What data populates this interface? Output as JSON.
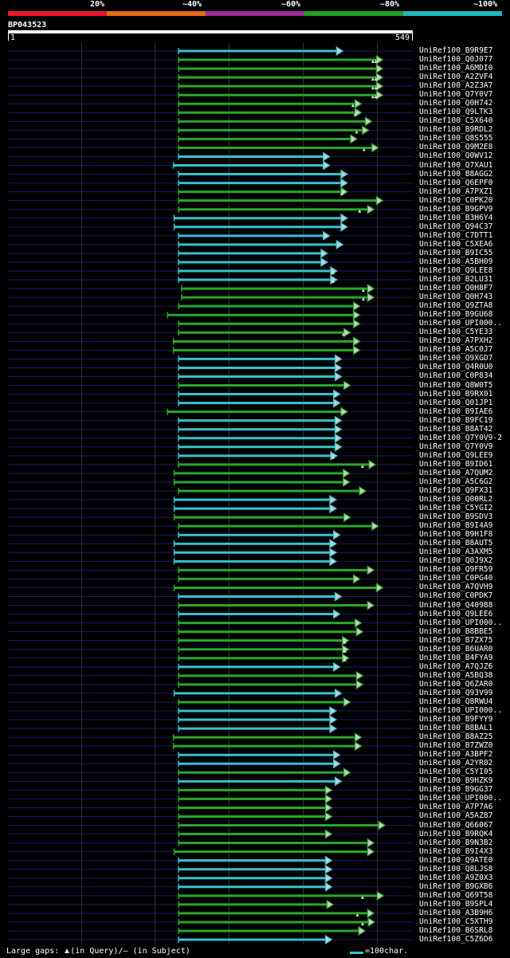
{
  "query": {
    "id": "BP043523",
    "start": "1",
    "end": "549",
    "length": 549
  },
  "identity_scale": [
    {
      "label": "20%",
      "color": "#e8162a"
    },
    {
      "label": "~40%",
      "color": "#e8691c"
    },
    {
      "label": "~60%",
      "color": "#9a2a9a"
    },
    {
      "label": "~80%",
      "color": "#22a022"
    },
    {
      "label": "~100%",
      "color": "#20b8c0"
    }
  ],
  "colors": {
    "background": "#000000",
    "row_track": "#1a1a66",
    "gridline": "#333333",
    "green": "#2aa82a",
    "cyan": "#35c2d0",
    "arrow_fill": "#cccccc",
    "text": "#ffffff"
  },
  "hits": [
    {
      "label": "UniRef100_B9R9E7",
      "start": 232,
      "end": 449,
      "color": "cyan",
      "marks": []
    },
    {
      "label": "UniRef100_Q0J077",
      "start": 232,
      "end": 503,
      "color": "green",
      "marks": [
        495,
        499
      ]
    },
    {
      "label": "UniRef100_A6MDI0",
      "start": 232,
      "end": 503,
      "color": "green",
      "marks": []
    },
    {
      "label": "UniRef100_A2ZVF4",
      "start": 232,
      "end": 503,
      "color": "green",
      "marks": [
        495,
        499
      ]
    },
    {
      "label": "UniRef100_A2Z3A7",
      "start": 232,
      "end": 503,
      "color": "green",
      "marks": [
        495,
        499
      ]
    },
    {
      "label": "UniRef100_Q7Y0V7",
      "start": 232,
      "end": 503,
      "color": "green",
      "marks": [
        495,
        499
      ]
    },
    {
      "label": "UniRef100_Q0H742",
      "start": 232,
      "end": 474,
      "color": "green",
      "marks": [
        468
      ]
    },
    {
      "label": "UniRef100_Q9LTK3",
      "start": 232,
      "end": 474,
      "color": "green",
      "marks": [
        471
      ]
    },
    {
      "label": "UniRef100_C5X640",
      "start": 232,
      "end": 488,
      "color": "green",
      "marks": []
    },
    {
      "label": "UniRef100_B9RDL2",
      "start": 232,
      "end": 484,
      "color": "green",
      "marks": [
        473
      ]
    },
    {
      "label": "UniRef100_Q8S555",
      "start": 232,
      "end": 468,
      "color": "green",
      "marks": []
    },
    {
      "label": "UniRef100_Q9M2E8",
      "start": 232,
      "end": 497,
      "color": "green",
      "marks": [
        483
      ]
    },
    {
      "label": "UniRef100_Q0WV12",
      "start": 232,
      "end": 431,
      "color": "cyan",
      "marks": []
    },
    {
      "label": "UniRef100_Q7XAU1",
      "start": 225,
      "end": 431,
      "color": "cyan",
      "marks": []
    },
    {
      "label": "UniRef100_B8AGG2",
      "start": 232,
      "end": 455,
      "color": "cyan",
      "marks": []
    },
    {
      "label": "UniRef100_Q6EPF0",
      "start": 232,
      "end": 455,
      "color": "cyan",
      "marks": []
    },
    {
      "label": "UniRef100_A7PXZ1",
      "start": 232,
      "end": 455,
      "color": "green",
      "marks": [
        453
      ]
    },
    {
      "label": "UniRef100_C0PK20",
      "start": 232,
      "end": 503,
      "color": "green",
      "marks": []
    },
    {
      "label": "UniRef100_B9GPV9",
      "start": 232,
      "end": 491,
      "color": "green",
      "marks": [
        477
      ]
    },
    {
      "label": "UniRef100_B3H6Y4",
      "start": 226,
      "end": 455,
      "color": "cyan",
      "marks": []
    },
    {
      "label": "UniRef100_Q94C37",
      "start": 226,
      "end": 455,
      "color": "cyan",
      "marks": []
    },
    {
      "label": "UniRef100_C7DTT1",
      "start": 232,
      "end": 431,
      "color": "cyan",
      "marks": []
    },
    {
      "label": "UniRef100_C5XEA6",
      "start": 232,
      "end": 449,
      "color": "cyan",
      "marks": []
    },
    {
      "label": "UniRef100_B9IC55",
      "start": 232,
      "end": 428,
      "color": "cyan",
      "marks": []
    },
    {
      "label": "UniRef100_A5BH09",
      "start": 232,
      "end": 428,
      "color": "cyan",
      "marks": []
    },
    {
      "label": "UniRef100_Q9LEE8",
      "start": 232,
      "end": 441,
      "color": "cyan",
      "marks": [
        441
      ]
    },
    {
      "label": "UniRef100_B2LU31",
      "start": 232,
      "end": 441,
      "color": "cyan",
      "marks": [
        441
      ]
    },
    {
      "label": "UniRef100_Q0H8F7",
      "start": 236,
      "end": 491,
      "color": "green",
      "marks": [
        482
      ]
    },
    {
      "label": "UniRef100_Q0H743",
      "start": 236,
      "end": 491,
      "color": "green",
      "marks": [
        482
      ]
    },
    {
      "label": "UniRef100_Q9ZTA8",
      "start": 232,
      "end": 472,
      "color": "green",
      "marks": []
    },
    {
      "label": "UniRef100_B9GU68",
      "start": 217,
      "end": 472,
      "color": "green",
      "marks": []
    },
    {
      "label": "UniRef100_UPI000..",
      "start": 232,
      "end": 472,
      "color": "green",
      "marks": []
    },
    {
      "label": "UniRef100_C5YE33",
      "start": 232,
      "end": 459,
      "color": "green",
      "marks": [
        455
      ]
    },
    {
      "label": "UniRef100_A7PXH2",
      "start": 225,
      "end": 472,
      "color": "green",
      "marks": []
    },
    {
      "label": "UniRef100_A5C0J7",
      "start": 225,
      "end": 472,
      "color": "green",
      "marks": []
    },
    {
      "label": "UniRef100_Q9XGD7",
      "start": 232,
      "end": 447,
      "color": "cyan",
      "marks": []
    },
    {
      "label": "UniRef100_Q4R0U0",
      "start": 232,
      "end": 447,
      "color": "cyan",
      "marks": []
    },
    {
      "label": "UniRef100_C0P834",
      "start": 232,
      "end": 447,
      "color": "cyan",
      "marks": []
    },
    {
      "label": "UniRef100_Q8W0T5",
      "start": 232,
      "end": 459,
      "color": "green",
      "marks": []
    },
    {
      "label": "UniRef100_B9RX01",
      "start": 232,
      "end": 445,
      "color": "cyan",
      "marks": []
    },
    {
      "label": "UniRef100_Q01JP1",
      "start": 232,
      "end": 445,
      "color": "cyan",
      "marks": []
    },
    {
      "label": "UniRef100_B9IAE6",
      "start": 217,
      "end": 455,
      "color": "green",
      "marks": []
    },
    {
      "label": "UniRef100_B9FC19",
      "start": 232,
      "end": 447,
      "color": "cyan",
      "marks": []
    },
    {
      "label": "UniRef100_B8AT42",
      "start": 232,
      "end": 447,
      "color": "cyan",
      "marks": []
    },
    {
      "label": "UniRef100_Q7Y0V9-2",
      "start": 232,
      "end": 447,
      "color": "cyan",
      "marks": []
    },
    {
      "label": "UniRef100_Q7Y0V9",
      "start": 232,
      "end": 447,
      "color": "cyan",
      "marks": []
    },
    {
      "label": "UniRef100_Q9LEE9",
      "start": 232,
      "end": 441,
      "color": "cyan",
      "marks": [
        441
      ]
    },
    {
      "label": "UniRef100_B9ID61",
      "start": 232,
      "end": 493,
      "color": "green",
      "marks": [
        481
      ]
    },
    {
      "label": "UniRef100_A7QUM2",
      "start": 226,
      "end": 458,
      "color": "green",
      "marks": []
    },
    {
      "label": "UniRef100_A5C6G2",
      "start": 226,
      "end": 458,
      "color": "green",
      "marks": []
    },
    {
      "label": "UniRef100_Q9FX31",
      "start": 232,
      "end": 480,
      "color": "green",
      "marks": []
    },
    {
      "label": "UniRef100_Q00RL2",
      "start": 226,
      "end": 440,
      "color": "cyan",
      "marks": []
    },
    {
      "label": "UniRef100_C5YGI2",
      "start": 226,
      "end": 440,
      "color": "cyan",
      "marks": []
    },
    {
      "label": "UniRef100_B9SDV3",
      "start": 226,
      "end": 459,
      "color": "green",
      "marks": []
    },
    {
      "label": "UniRef100_B9I4A9",
      "start": 232,
      "end": 497,
      "color": "green",
      "marks": []
    },
    {
      "label": "UniRef100_B9H1F8",
      "start": 232,
      "end": 445,
      "color": "cyan",
      "marks": []
    },
    {
      "label": "UniRef100_B8AUT5",
      "start": 226,
      "end": 440,
      "color": "cyan",
      "marks": []
    },
    {
      "label": "UniRef100_A3AXM5",
      "start": 226,
      "end": 440,
      "color": "cyan",
      "marks": []
    },
    {
      "label": "UniRef100_Q0J9X2",
      "start": 226,
      "end": 440,
      "color": "cyan",
      "marks": []
    },
    {
      "label": "UniRef100_Q9FR59",
      "start": 232,
      "end": 491,
      "color": "green",
      "marks": []
    },
    {
      "label": "UniRef100_C0PG40",
      "start": 232,
      "end": 472,
      "color": "green",
      "marks": []
    },
    {
      "label": "UniRef100_A7QVH9",
      "start": 226,
      "end": 503,
      "color": "green",
      "marks": []
    },
    {
      "label": "UniRef100_C0PDK7",
      "start": 232,
      "end": 447,
      "color": "cyan",
      "marks": []
    },
    {
      "label": "UniRef100_Q40988",
      "start": 232,
      "end": 491,
      "color": "green",
      "marks": []
    },
    {
      "label": "UniRef100_Q9LEE6",
      "start": 232,
      "end": 445,
      "color": "cyan",
      "marks": []
    },
    {
      "label": "UniRef100_UPI000..",
      "start": 232,
      "end": 474,
      "color": "green",
      "marks": []
    },
    {
      "label": "UniRef100_B8BBE5",
      "start": 232,
      "end": 476,
      "color": "green",
      "marks": []
    },
    {
      "label": "UniRef100_B7ZX75",
      "start": 232,
      "end": 457,
      "color": "green",
      "marks": [
        457
      ]
    },
    {
      "label": "UniRef100_B6UAR0",
      "start": 232,
      "end": 457,
      "color": "green",
      "marks": [
        457
      ]
    },
    {
      "label": "UniRef100_B4FYA9",
      "start": 232,
      "end": 457,
      "color": "green",
      "marks": [
        457
      ]
    },
    {
      "label": "UniRef100_A7QJZ6",
      "start": 232,
      "end": 445,
      "color": "cyan",
      "marks": []
    },
    {
      "label": "UniRef100_A5BQ38",
      "start": 232,
      "end": 476,
      "color": "green",
      "marks": []
    },
    {
      "label": "UniRef100_Q6ZAR0",
      "start": 232,
      "end": 476,
      "color": "green",
      "marks": []
    },
    {
      "label": "UniRef100_Q93V99",
      "start": 226,
      "end": 447,
      "color": "cyan",
      "marks": []
    },
    {
      "label": "UniRef100_Q8RWU4",
      "start": 232,
      "end": 459,
      "color": "green",
      "marks": []
    },
    {
      "label": "UniRef100_UPI000..",
      "start": 232,
      "end": 440,
      "color": "cyan",
      "marks": []
    },
    {
      "label": "UniRef100_B9FYY9",
      "start": 232,
      "end": 440,
      "color": "cyan",
      "marks": []
    },
    {
      "label": "UniRef100_B8BAL1",
      "start": 232,
      "end": 440,
      "color": "cyan",
      "marks": []
    },
    {
      "label": "UniRef100_B8AZ25",
      "start": 225,
      "end": 474,
      "color": "green",
      "marks": []
    },
    {
      "label": "UniRef100_B7ZWZ0",
      "start": 225,
      "end": 474,
      "color": "green",
      "marks": []
    },
    {
      "label": "UniRef100_A3BPF2",
      "start": 232,
      "end": 445,
      "color": "cyan",
      "marks": []
    },
    {
      "label": "UniRef100_A2YR02",
      "start": 232,
      "end": 445,
      "color": "cyan",
      "marks": []
    },
    {
      "label": "UniRef100_C5YI05",
      "start": 232,
      "end": 459,
      "color": "green",
      "marks": []
    },
    {
      "label": "UniRef100_B9HZK9",
      "start": 232,
      "end": 447,
      "color": "cyan",
      "marks": []
    },
    {
      "label": "UniRef100_B9GG37",
      "start": 232,
      "end": 434,
      "color": "green",
      "marks": []
    },
    {
      "label": "UniRef100_UPI000..",
      "start": 232,
      "end": 434,
      "color": "green",
      "marks": []
    },
    {
      "label": "UniRef100_A7P7A6",
      "start": 232,
      "end": 434,
      "color": "green",
      "marks": []
    },
    {
      "label": "UniRef100_A5AZ87",
      "start": 232,
      "end": 434,
      "color": "green",
      "marks": []
    },
    {
      "label": "UniRef100_Q66067",
      "start": 232,
      "end": 506,
      "color": "green",
      "marks": []
    },
    {
      "label": "UniRef100_B9RQK4",
      "start": 232,
      "end": 434,
      "color": "green",
      "marks": []
    },
    {
      "label": "UniRef100_B9N3B2",
      "start": 232,
      "end": 491,
      "color": "green",
      "marks": []
    },
    {
      "label": "UniRef100_B9I4X3",
      "start": 226,
      "end": 491,
      "color": "green",
      "marks": []
    },
    {
      "label": "UniRef100_Q9ATE0",
      "start": 232,
      "end": 434,
      "color": "cyan",
      "marks": []
    },
    {
      "label": "UniRef100_Q8LJS8",
      "start": 232,
      "end": 434,
      "color": "cyan",
      "marks": []
    },
    {
      "label": "UniRef100_A9Z0X3",
      "start": 232,
      "end": 434,
      "color": "cyan",
      "marks": []
    },
    {
      "label": "UniRef100_B9GXB6",
      "start": 232,
      "end": 434,
      "color": "cyan",
      "marks": []
    },
    {
      "label": "UniRef100_Q69T58",
      "start": 232,
      "end": 504,
      "color": "green",
      "marks": [
        481
      ]
    },
    {
      "label": "UniRef100_B9SPL4",
      "start": 232,
      "end": 436,
      "color": "green",
      "marks": []
    },
    {
      "label": "UniRef100_A3B9H6",
      "start": 232,
      "end": 491,
      "color": "green",
      "marks": [
        474
      ]
    },
    {
      "label": "UniRef100_C5XTH9",
      "start": 232,
      "end": 492,
      "color": "green",
      "marks": [
        481
      ]
    },
    {
      "label": "UniRef100_B6SRL8",
      "start": 232,
      "end": 479,
      "color": "green",
      "marks": []
    },
    {
      "label": "UniRef100_C5Z6D6",
      "start": 232,
      "end": 434,
      "color": "cyan",
      "marks": []
    }
  ],
  "footer": {
    "gaps_prefix": "Large gaps: ",
    "gaps_query": "(in Query)/",
    "gaps_subject": "— (in Subject)",
    "scale_label": "=100char."
  }
}
